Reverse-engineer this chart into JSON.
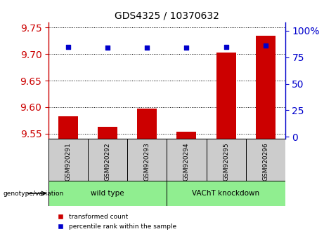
{
  "title": "GDS4325 / 10370632",
  "samples": [
    "GSM920291",
    "GSM920292",
    "GSM920293",
    "GSM920294",
    "GSM920295",
    "GSM920296"
  ],
  "transformed_counts": [
    9.582,
    9.563,
    9.597,
    9.554,
    9.703,
    9.735
  ],
  "percentile_rank_values": [
    85,
    84,
    84,
    84,
    85,
    86
  ],
  "group_labels": [
    "wild type",
    "VAChT knockdown"
  ],
  "group_ranges": [
    [
      0,
      2
    ],
    [
      3,
      5
    ]
  ],
  "group_color": "#90EE90",
  "ylim_left": [
    9.54,
    9.76
  ],
  "ylim_right": [
    -2,
    108
  ],
  "yticks_left": [
    9.55,
    9.6,
    9.65,
    9.7,
    9.75
  ],
  "yticks_right": [
    0,
    25,
    50,
    75,
    100
  ],
  "left_axis_color": "#cc0000",
  "right_axis_color": "#0000cc",
  "bar_color": "#cc0000",
  "dot_color": "#0000cc",
  "legend_red_label": "transformed count",
  "legend_blue_label": "percentile rank within the sample",
  "group_label": "genotype/variation",
  "sample_box_color": "#cccccc",
  "bar_baseline": 9.54
}
